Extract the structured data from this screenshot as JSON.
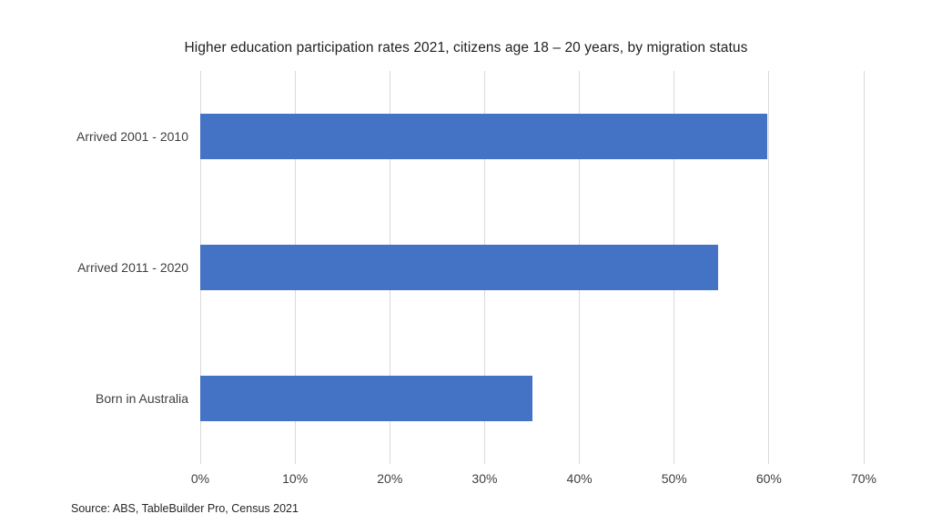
{
  "chart_data": {
    "type": "bar",
    "orientation": "horizontal",
    "title": "Higher education participation rates 2021, citizens age 18 – 20 years, by migration status",
    "categories": [
      "Arrived 2001 - 2010",
      "Arrived 2011 - 2020",
      "Born in Australia"
    ],
    "values": [
      59.8,
      54.6,
      35
    ],
    "value_unit": "%",
    "xlabel": "",
    "ylabel": "",
    "xlim": [
      0,
      70
    ],
    "xticks": [
      "0%",
      "10%",
      "20%",
      "30%",
      "40%",
      "50%",
      "60%",
      "70%"
    ],
    "xtick_values": [
      0,
      10,
      20,
      30,
      40,
      50,
      60,
      70
    ],
    "grid": "vertical-only",
    "legend": "none",
    "bar_color": "#4472C4",
    "gridline_color": "#D9D9D9",
    "text_color": "#3f3f3f"
  },
  "source_note": "Source: ABS, TableBuilder Pro, Census 2021"
}
